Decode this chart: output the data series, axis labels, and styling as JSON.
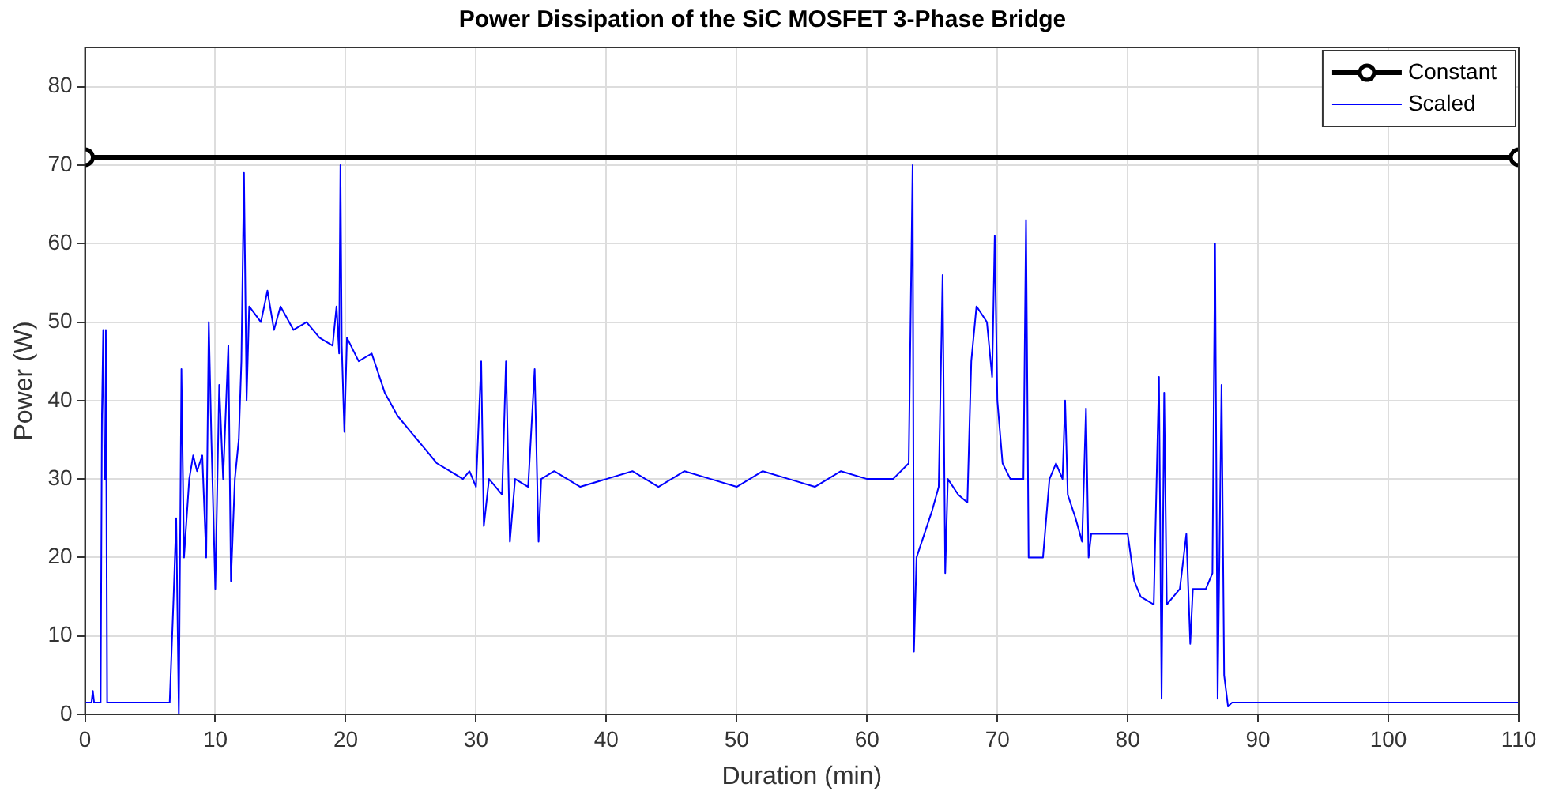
{
  "chart_data": {
    "type": "line",
    "title": "Power Dissipation of the SiC MOSFET 3-Phase Bridge",
    "xlabel": "Duration (min)",
    "ylabel": "Power (W)",
    "xlim": [
      0,
      110
    ],
    "xticks": [
      0,
      10,
      20,
      30,
      40,
      50,
      60,
      70,
      80,
      90,
      100,
      110
    ],
    "ylim": [
      0,
      85
    ],
    "yticks": [
      0,
      10,
      20,
      30,
      40,
      50,
      60,
      70,
      80
    ],
    "grid": true,
    "legend": "top right",
    "line_style": "solid",
    "series": [
      {
        "name": "Constant",
        "color": "#000000",
        "marker": "circle",
        "x": [
          0,
          110
        ],
        "values": [
          71,
          71
        ]
      },
      {
        "name": "Scaled",
        "color": "#0000ff",
        "marker": "none",
        "x": [
          0,
          0.5,
          0.6,
          0.7,
          1.2,
          1.3,
          1.4,
          1.5,
          1.6,
          1.7,
          2,
          6.5,
          6.8,
          7.0,
          7.2,
          7.4,
          7.6,
          8.0,
          8.3,
          8.6,
          9.0,
          9.3,
          9.5,
          9.7,
          10,
          10.3,
          10.6,
          11,
          11.2,
          11.5,
          11.8,
          12.0,
          12.2,
          12.4,
          12.6,
          13.5,
          14,
          14.5,
          15,
          16,
          17,
          18,
          19,
          19.3,
          19.5,
          19.6,
          19.7,
          19.9,
          20.1,
          21,
          22,
          23,
          24,
          25,
          26,
          27,
          28,
          29,
          29.5,
          30,
          30.4,
          30.6,
          31,
          32,
          32.3,
          32.6,
          33,
          34,
          34.5,
          34.8,
          35,
          36,
          38,
          40,
          42,
          44,
          46,
          48,
          50,
          52,
          54,
          56,
          58,
          60,
          62,
          63.2,
          63.5,
          63.6,
          63.8,
          65,
          65.5,
          65.8,
          66,
          66.2,
          67,
          67.7,
          68,
          68.4,
          69.2,
          69.6,
          69.8,
          70,
          70.4,
          71,
          72,
          72.2,
          72.4,
          73.5,
          74,
          74.5,
          75,
          75.2,
          75.4,
          76,
          76.5,
          76.8,
          77,
          77.2,
          79,
          80,
          80.5,
          81,
          82,
          82.4,
          82.6,
          82.8,
          83,
          84,
          84.5,
          84.8,
          85,
          86,
          86.5,
          86.7,
          86.9,
          87.2,
          87.4,
          87.7,
          88,
          88.5,
          110
        ],
        "values": [
          1.5,
          1.5,
          3,
          1.5,
          1.5,
          38,
          49,
          30,
          49,
          1.5,
          1.5,
          1.5,
          15,
          25,
          0,
          44,
          20,
          30,
          33,
          31,
          33,
          20,
          50,
          35,
          16,
          42,
          30,
          47,
          17,
          30,
          35,
          45,
          69,
          40,
          52,
          50,
          54,
          49,
          52,
          49,
          50,
          48,
          47,
          52,
          46,
          70,
          47,
          36,
          48,
          45,
          46,
          41,
          38,
          36,
          34,
          32,
          31,
          30,
          31,
          29,
          45,
          24,
          30,
          28,
          45,
          22,
          30,
          29,
          44,
          22,
          30,
          31,
          29,
          30,
          31,
          29,
          31,
          30,
          29,
          31,
          30,
          29,
          31,
          30,
          30,
          32,
          70,
          8,
          20,
          26,
          29,
          56,
          18,
          30,
          28,
          27,
          45,
          52,
          50,
          43,
          61,
          40,
          32,
          30,
          30,
          63,
          20,
          20,
          30,
          32,
          30,
          40,
          28,
          25,
          22,
          39,
          20,
          23,
          23,
          23,
          17,
          15,
          14,
          43,
          2,
          41,
          14,
          16,
          23,
          9,
          16,
          16,
          18,
          60,
          2,
          42,
          5,
          1,
          1.5,
          1.5,
          1.5
        ]
      }
    ]
  }
}
